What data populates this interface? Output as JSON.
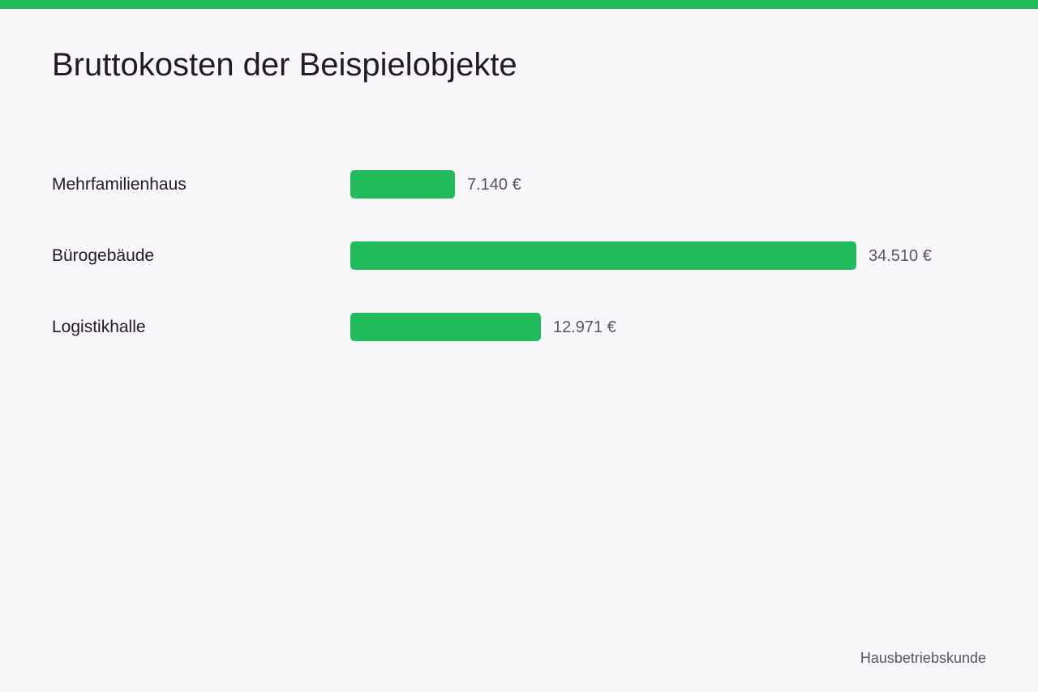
{
  "title": "Bruttokosten der Beispielobjekte",
  "source": "Hausbetriebskunde",
  "colors": {
    "accent": "#22bb5c",
    "background": "#f7f6f9",
    "text": "#231a24",
    "muted": "#5e5360"
  },
  "chart_data": {
    "type": "bar",
    "orientation": "horizontal",
    "categories": [
      "Mehrfamilienhaus",
      "Bürogebäude",
      "Logistikhalle"
    ],
    "values": [
      7140,
      34510,
      12971
    ],
    "value_labels": [
      "7.140 €",
      "34.510 €",
      "12.971 €"
    ],
    "unit": "€",
    "xlim": [
      0,
      34510
    ],
    "grid": false,
    "legend": "none"
  }
}
